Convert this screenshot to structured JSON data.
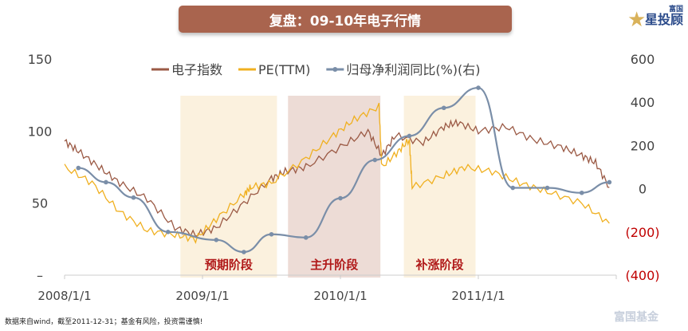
{
  "title": "复盘：09-10年电子行情",
  "logo": {
    "top": "富国",
    "bottom": "星投顾"
  },
  "watermark": "富国基金",
  "footnote": "数据来自wind，截至2011-12-31；基金有风险，投资需谨慎!",
  "colors": {
    "index": "#9b5a45",
    "pe": "#f0b020",
    "profit": "#7a8ea8",
    "phase_light": "#fbf1de",
    "phase_dark": "#eddcd6",
    "phase_text": "#b01818",
    "neg": "#c00000"
  },
  "chart_data": {
    "type": "line",
    "title": "复盘：09-10年电子行情",
    "x_ticks": [
      "2008/1/1",
      "2009/1/1",
      "2010/1/1",
      "2011/1/1"
    ],
    "xlim": [
      2008.0,
      2012.0
    ],
    "y_left": {
      "ticks": [
        "150",
        "100",
        "50",
        "–"
      ],
      "values": [
        150,
        100,
        50,
        0
      ],
      "lim": [
        0,
        150
      ]
    },
    "y_right": {
      "ticks": [
        "600",
        "400",
        "200",
        "0",
        "(200)",
        "(400)"
      ],
      "values": [
        600,
        400,
        200,
        0,
        -200,
        -400
      ],
      "lim": [
        -400,
        600
      ]
    },
    "legend": [
      "电子指数",
      "PE(TTM)",
      "归母净利润同比(%)(右)"
    ],
    "legend_position": "top",
    "phases": [
      {
        "label": "预期阶段",
        "start": 2008.84,
        "end": 2009.54,
        "style": "light"
      },
      {
        "label": "主升阶段",
        "start": 2009.62,
        "end": 2010.29,
        "style": "dark"
      },
      {
        "label": "补涨阶段",
        "start": 2010.46,
        "end": 2010.98,
        "style": "light"
      }
    ],
    "series": [
      {
        "name": "电子指数",
        "axis": "left",
        "x": [
          2008.0,
          2008.1,
          2008.25,
          2008.4,
          2008.6,
          2008.8,
          2008.95,
          2009.1,
          2009.3,
          2009.5,
          2009.6,
          2009.75,
          2010.0,
          2010.2,
          2010.3,
          2010.4,
          2010.6,
          2010.75,
          2010.85,
          2011.0,
          2011.2,
          2011.4,
          2011.6,
          2011.75,
          2011.85,
          2011.95
        ],
        "y": [
          93,
          86,
          75,
          64,
          53,
          33,
          28,
          33,
          50,
          67,
          72,
          75,
          89,
          100,
          83,
          97,
          92,
          103,
          106,
          100,
          103,
          94,
          89,
          83,
          78,
          61
        ]
      },
      {
        "name": "PE(TTM)",
        "axis": "left",
        "x": [
          2008.0,
          2008.2,
          2008.4,
          2008.6,
          2008.8,
          2008.95,
          2009.1,
          2009.3,
          2009.35,
          2009.5,
          2009.75,
          2009.95,
          2010.1,
          2010.28,
          2010.3,
          2010.42,
          2010.5,
          2010.52,
          2010.75,
          2010.9,
          2011.1,
          2011.3,
          2011.5,
          2011.75,
          2011.95
        ],
        "y": [
          75,
          64,
          44,
          31,
          28,
          25,
          39,
          56,
          61,
          64,
          81,
          97,
          108,
          117,
          75,
          86,
          94,
          61,
          69,
          75,
          72,
          64,
          58,
          50,
          36
        ]
      },
      {
        "name": "归母净利润同比(%)(右)",
        "axis": "right",
        "markers": true,
        "x": [
          2008.1,
          2008.3,
          2008.5,
          2008.75,
          2009.1,
          2009.3,
          2009.5,
          2009.75,
          2010.0,
          2010.25,
          2010.5,
          2010.75,
          2011.0,
          2011.25,
          2011.5,
          2011.75,
          2011.95
        ],
        "y": [
          96,
          30,
          -41,
          -200,
          -237,
          -293,
          -211,
          -226,
          -44,
          133,
          244,
          374,
          467,
          4,
          4,
          -19,
          30
        ]
      }
    ]
  }
}
